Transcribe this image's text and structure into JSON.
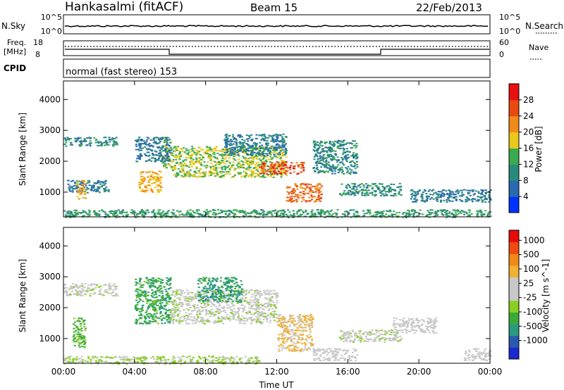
{
  "header": {
    "station": "Hankasalmi (fitACF)",
    "beam": "Beam 15",
    "date": "22/Feb/2013"
  },
  "panels": {
    "noise": {
      "left_label": "N.Sky",
      "left_ticks": [
        "10^5",
        "10^0"
      ],
      "right_label": "N.Search",
      "right_ticks": [
        "10^5",
        "10^0"
      ]
    },
    "freq": {
      "left_label_1": "Freq.",
      "left_label_2": "[MHz]",
      "left_ticks": [
        "18",
        "8"
      ],
      "right_label": "Nave",
      "right_ticks": [
        "60",
        "0"
      ]
    },
    "cpid": {
      "label": "CPID",
      "text": "normal (fast stereo) 153"
    }
  },
  "colors": {
    "power": [
      "#0033ff",
      "#2a6ab0",
      "#2a8a7a",
      "#3aaa50",
      "#e8c81a",
      "#f08a1a",
      "#e84a10",
      "#e81010"
    ],
    "velocity": [
      "#e80a0a",
      "#f04a10",
      "#f0881a",
      "#f0b030",
      "#c8c8c8",
      "#c8c8c8",
      "#88d020",
      "#3aaa3a",
      "#2a9a80",
      "#2a5ab0",
      "#1a2ad0"
    ]
  },
  "chart_data": [
    {
      "type": "heatmap",
      "title": "",
      "xlabel": "",
      "ylabel": "Slant Range [km]",
      "x_ticks": [
        "00:00",
        "04:00",
        "08:00",
        "12:00",
        "16:00",
        "20:00",
        "00:00"
      ],
      "y_ticks": [
        "1000",
        "2000",
        "3000",
        "4000"
      ],
      "xlim": [
        0,
        24
      ],
      "ylim": [
        200,
        4600
      ],
      "colorbar": {
        "label": "Power [dB]",
        "ticks": [
          "4",
          "8",
          "12",
          "16",
          "20",
          "24",
          "28"
        ],
        "range": [
          0,
          32
        ]
      },
      "features": [
        {
          "t": [
            0.0,
            3.0
          ],
          "range": [
            2500,
            2800
          ],
          "value": 10
        },
        {
          "t": [
            0.2,
            2.5
          ],
          "range": [
            1000,
            1400
          ],
          "value": 8
        },
        {
          "t": [
            0.7,
            1.2
          ],
          "range": [
            800,
            1400
          ],
          "value": 20
        },
        {
          "t": [
            4.2,
            5.5
          ],
          "range": [
            1000,
            1700
          ],
          "value": 20
        },
        {
          "t": [
            5.5,
            6.0
          ],
          "range": [
            1800,
            2800
          ],
          "value": 16
        },
        {
          "t": [
            4.0,
            6.0
          ],
          "range": [
            2000,
            2800
          ],
          "value": 8
        },
        {
          "t": [
            6.0,
            12.5
          ],
          "range": [
            1500,
            2500
          ],
          "value": 16
        },
        {
          "t": [
            9.0,
            12.5
          ],
          "range": [
            2200,
            2900
          ],
          "value": 8
        },
        {
          "t": [
            11.0,
            13.5
          ],
          "range": [
            1600,
            2000
          ],
          "value": 26
        },
        {
          "t": [
            12.5,
            14.5
          ],
          "range": [
            700,
            1300
          ],
          "value": 24
        },
        {
          "t": [
            14.0,
            16.5
          ],
          "range": [
            1600,
            2700
          ],
          "value": 10
        },
        {
          "t": [
            15.5,
            19.0
          ],
          "range": [
            900,
            1300
          ],
          "value": 10
        },
        {
          "t": [
            19.5,
            24.0
          ],
          "range": [
            700,
            1100
          ],
          "value": 8
        },
        {
          "t": [
            0.0,
            24.0
          ],
          "range": [
            200,
            450
          ],
          "value": 12
        }
      ]
    },
    {
      "type": "heatmap",
      "title": "",
      "xlabel": "Time UT",
      "ylabel": "Slant Range [km]",
      "x_ticks": [
        "00:00",
        "04:00",
        "08:00",
        "12:00",
        "16:00",
        "20:00",
        "00:00"
      ],
      "y_ticks": [
        "1000",
        "2000",
        "3000",
        "4000"
      ],
      "xlim": [
        0,
        24
      ],
      "ylim": [
        200,
        4600
      ],
      "colorbar": {
        "label": "Velocity [m s^-1]",
        "ticks": [
          "1000",
          "500",
          "100",
          "25",
          "-25",
          "-100",
          "-500",
          "-1000"
        ],
        "range": [
          -1000,
          1000
        ]
      },
      "features": [
        {
          "t": [
            0.0,
            3.0
          ],
          "range": [
            2400,
            2800
          ],
          "value": 0
        },
        {
          "t": [
            0.5,
            1.2
          ],
          "range": [
            700,
            1700
          ],
          "value": -300
        },
        {
          "t": [
            4.0,
            6.0
          ],
          "range": [
            1500,
            3000
          ],
          "value": -400
        },
        {
          "t": [
            6.0,
            12.0
          ],
          "range": [
            1500,
            2600
          ],
          "value": 0
        },
        {
          "t": [
            7.5,
            10.0
          ],
          "range": [
            2200,
            3000
          ],
          "value": -500
        },
        {
          "t": [
            12.0,
            14.0
          ],
          "range": [
            600,
            1800
          ],
          "value": 300
        },
        {
          "t": [
            14.0,
            16.5
          ],
          "range": [
            300,
            700
          ],
          "value": 80
        },
        {
          "t": [
            15.5,
            19.0
          ],
          "range": [
            900,
            1300
          ],
          "value": 0
        },
        {
          "t": [
            18.5,
            21.0
          ],
          "range": [
            1200,
            1700
          ],
          "value": 90
        },
        {
          "t": [
            22.5,
            24.0
          ],
          "range": [
            300,
            700
          ],
          "value": 60
        },
        {
          "t": [
            0.0,
            11.0
          ],
          "range": [
            200,
            450
          ],
          "value": -120
        }
      ]
    }
  ]
}
